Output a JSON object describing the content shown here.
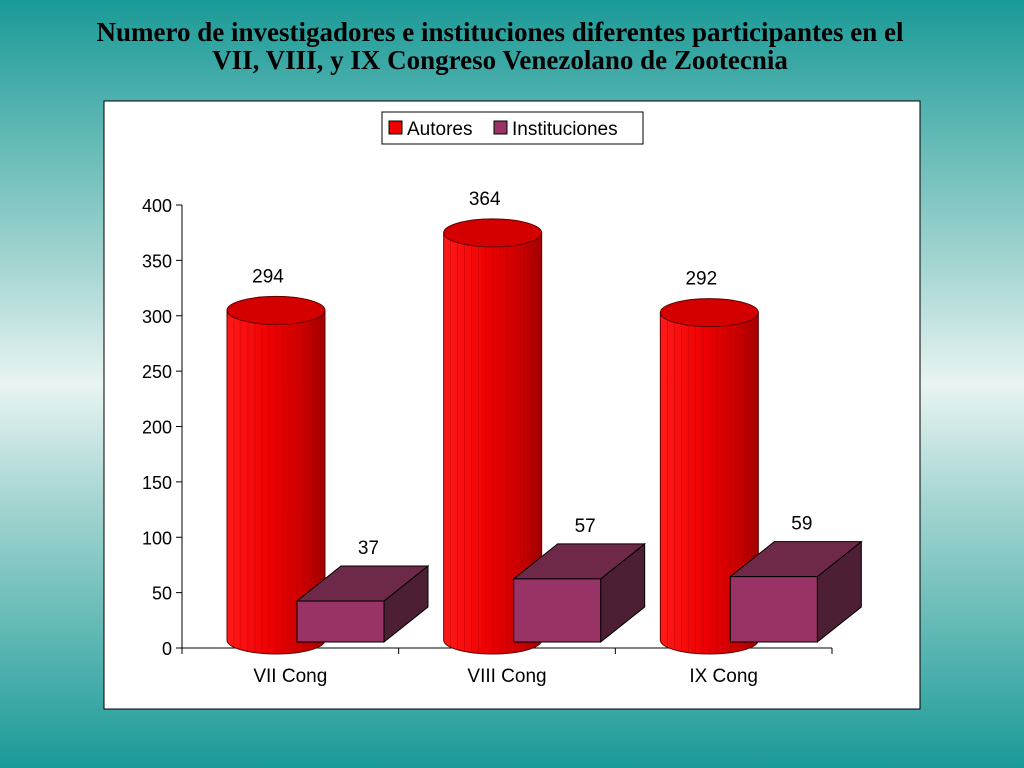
{
  "title_lines": [
    "Numero de investigadores e instituciones diferentes participantes en el",
    "VII, VIII, y IX Congreso Venezolano de Zootecnia"
  ],
  "colors": {
    "autores": "#ee0000",
    "instituciones": "#993366"
  },
  "chart_data": {
    "type": "bar",
    "categories": [
      "VII Cong",
      "VIII Cong",
      "IX Cong"
    ],
    "series": [
      {
        "name": "Autores",
        "values": [
          294,
          364,
          292
        ]
      },
      {
        "name": "Instituciones",
        "values": [
          37,
          57,
          59
        ]
      }
    ],
    "ylim": [
      0,
      400
    ],
    "yticks": [
      0,
      50,
      100,
      150,
      200,
      250,
      300,
      350,
      400
    ],
    "legend": "top-center",
    "grid": false
  }
}
